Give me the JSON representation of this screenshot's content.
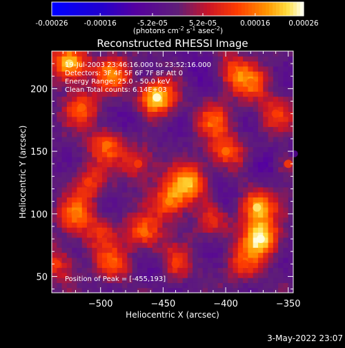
{
  "chart_data": {
    "type": "heatmap",
    "title": "Reconstructed RHESSI Image",
    "xlabel": "Heliocentric X (arcsec)",
    "ylabel": "Heliocentric Y (arcsec)",
    "xlim": [
      -539,
      -346
    ],
    "ylim": [
      37,
      230
    ],
    "xticks": [
      -500,
      -450,
      -400,
      -350
    ],
    "yticks": [
      50,
      100,
      150,
      200
    ],
    "colorscale": "red-temperature",
    "colorbar": {
      "range": [
        -0.00026,
        0.00026
      ],
      "ticks": [
        {
          "value": -0.00026,
          "label": "-0.00026"
        },
        {
          "value": -0.00016,
          "label": "-0.00016"
        },
        {
          "value": -5.2e-05,
          "label": "-5.2e-05"
        },
        {
          "value": 5.2e-05,
          "label": "5.2e-05"
        },
        {
          "value": 0.00016,
          "label": "0.00016"
        },
        {
          "value": 0.00026,
          "label": "0.00026"
        }
      ],
      "label": "(photons cm",
      "label_exp1": "-2",
      "label_mid": " s",
      "label_exp2": "-1",
      "label_end": " asec",
      "label_exp3": "-2",
      "label_close": ")"
    },
    "annotations": [
      "19-Jul-2003 23:46:16.000 to 23:52:16.000",
      "Detectors: 3F 4F 5F 6F 7F 8F  Att 0",
      "Energy Range: 25.0 - 50.0 keV",
      "Clean    Total counts: 6.14E+03"
    ],
    "peak_label": "Position of Peak = [-455,193]",
    "peak": [
      -455,
      193
    ],
    "hotspots": [
      {
        "x": -372,
        "y": 80,
        "value": 0.00026
      },
      {
        "x": -375,
        "y": 105,
        "value": 0.00024
      },
      {
        "x": -455,
        "y": 193,
        "value": 0.00026
      },
      {
        "x": -525,
        "y": 220,
        "value": 0.00024
      },
      {
        "x": -490,
        "y": 212,
        "value": 0.00018
      },
      {
        "x": -430,
        "y": 125,
        "value": 0.00022
      },
      {
        "x": -445,
        "y": 110,
        "value": 0.00018
      },
      {
        "x": -465,
        "y": 85,
        "value": 0.00016
      },
      {
        "x": -495,
        "y": 155,
        "value": 0.00016
      },
      {
        "x": -520,
        "y": 100,
        "value": 0.00016
      },
      {
        "x": -515,
        "y": 185,
        "value": 0.00015
      },
      {
        "x": -400,
        "y": 150,
        "value": 0.00016
      },
      {
        "x": -410,
        "y": 175,
        "value": 0.00014
      },
      {
        "x": -380,
        "y": 205,
        "value": 0.00015
      },
      {
        "x": -360,
        "y": 180,
        "value": 0.00012
      },
      {
        "x": -535,
        "y": 60,
        "value": 0.00012
      },
      {
        "x": -490,
        "y": 60,
        "value": 0.00014
      },
      {
        "x": -440,
        "y": 60,
        "value": 0.00012
      },
      {
        "x": -470,
        "y": 140,
        "value": 0.00012
      },
      {
        "x": -350,
        "y": 140,
        "value": 0.00012
      },
      {
        "x": -410,
        "y": 95,
        "value": 0.0001
      },
      {
        "x": -510,
        "y": 125,
        "value": 0.00012
      },
      {
        "x": -395,
        "y": 215,
        "value": 0.00012
      },
      {
        "x": -500,
        "y": 85,
        "value": 0.00011
      },
      {
        "x": -385,
        "y": 60,
        "value": 0.00012
      }
    ],
    "coldspots": [
      {
        "x": -370,
        "y": 138,
        "value": -8e-05
      },
      {
        "x": -345,
        "y": 148,
        "value": -7e-05
      },
      {
        "x": -475,
        "y": 175,
        "value": -6e-05
      },
      {
        "x": -420,
        "y": 215,
        "value": -5e-05
      },
      {
        "x": -400,
        "y": 110,
        "value": -6e-05
      },
      {
        "x": -455,
        "y": 55,
        "value": -5e-05
      }
    ]
  },
  "timestamp": "3-May-2022 23:07"
}
